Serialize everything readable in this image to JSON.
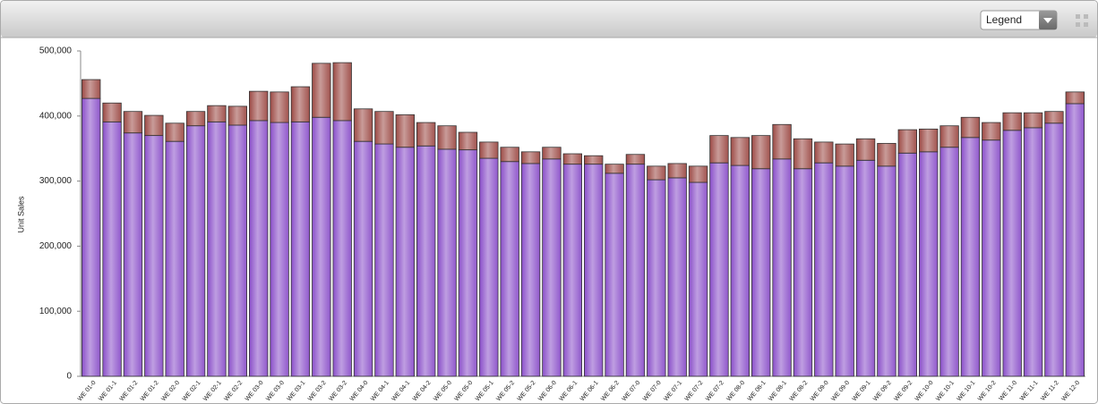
{
  "toolbar": {
    "legend_dropdown": "Legend"
  },
  "chart_data": {
    "type": "stacked_bar",
    "y_label": "Unit Sales",
    "categories": [
      "WE 01-0",
      "WE 01-1",
      "WE 01-2",
      "WE 01-2",
      "WE 02-0",
      "WE 02-1",
      "WE 02-1",
      "WE 02-2",
      "WE 03-0",
      "WE 03-0",
      "WE 03-1",
      "WE 03-2",
      "WE 03-2",
      "WE 04-0",
      "WE 04-1",
      "WE 04-1",
      "WE 04-2",
      "WE 05-0",
      "WE 05-0",
      "WE 05-1",
      "WE 05-2",
      "WE 05-2",
      "WE 06-0",
      "WE 06-1",
      "WE 06-1",
      "WE 06-2",
      "WE 07-0",
      "WE 07-0",
      "WE 07-1",
      "WE 07-2",
      "WE 07-2",
      "WE 08-0",
      "WE 08-1",
      "WE 08-1",
      "WE 08-2",
      "WE 09-0",
      "WE 09-0",
      "WE 09-1",
      "WE 09-2",
      "WE 09-2",
      "WE 10-0",
      "WE 10-1",
      "WE 10-1",
      "WE 10-2",
      "WE 11-0",
      "WE 11-1",
      "WE 11-2",
      "WE 12-0"
    ],
    "series": [
      {
        "color": "#8a4fc9",
        "values": [
          427000,
          391000,
          374000,
          370000,
          361000,
          385000,
          391000,
          386000,
          393000,
          390000,
          391000,
          398000,
          393000,
          361000,
          357000,
          352000,
          354000,
          349000,
          348000,
          335000,
          330000,
          327000,
          334000,
          326000,
          326000,
          312000,
          326000,
          302000,
          305000,
          298000,
          328000,
          324000,
          319000,
          334000,
          319000,
          328000,
          323000,
          332000,
          323000,
          343000,
          345000,
          352000,
          367000,
          363000,
          378000,
          382000,
          389000,
          419000
        ]
      },
      {
        "color": "#9c4a45",
        "values": [
          29000,
          29000,
          33000,
          31000,
          28000,
          22000,
          25000,
          29000,
          45000,
          47000,
          54000,
          83000,
          89000,
          50000,
          50000,
          50000,
          36000,
          36000,
          27000,
          25000,
          22000,
          18000,
          18000,
          16000,
          13000,
          14000,
          15000,
          21000,
          22000,
          25000,
          42000,
          43000,
          51000,
          53000,
          46000,
          32000,
          34000,
          33000,
          35000,
          36000,
          35000,
          33000,
          31000,
          27000,
          27000,
          23000,
          18000,
          18000
        ]
      }
    ],
    "ylim": [
      0,
      500000
    ],
    "yticks": [
      0,
      {
        "value": 100000,
        "label": "100,000"
      },
      {
        "value": 200000,
        "label": "200,000"
      },
      {
        "value": 300000,
        "label": "300,000"
      },
      {
        "value": 400000,
        "label": "400,000"
      },
      {
        "value": 500000,
        "label": "500,000"
      }
    ]
  }
}
